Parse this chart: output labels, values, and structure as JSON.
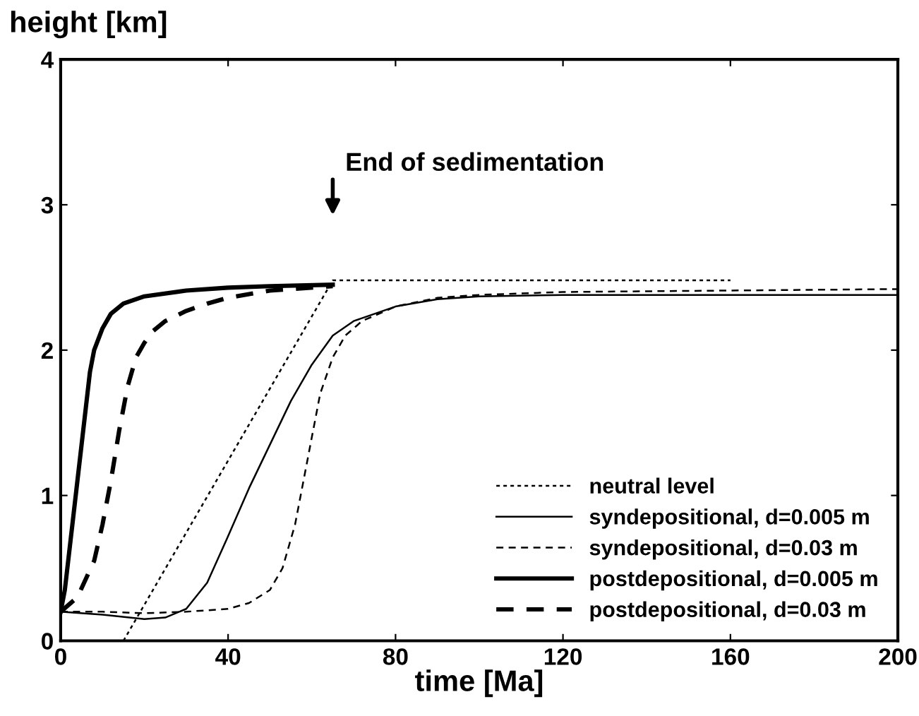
{
  "chart_data": {
    "type": "line",
    "xlabel": "time [Ma]",
    "ylabel": "height [km]",
    "xlim": [
      0,
      200
    ],
    "ylim": [
      0,
      4
    ],
    "xticks": [
      0,
      40,
      80,
      120,
      160,
      200
    ],
    "yticks": [
      0,
      1,
      2,
      3,
      4
    ],
    "grid": false,
    "legend": "bottom right",
    "annotations": [
      "End of sedimentation"
    ],
    "series": [
      {
        "name": "neutral level",
        "color": "#000000",
        "line_style": "dotted",
        "x": [
          15,
          65,
          160
        ],
        "values": [
          0,
          2.48,
          2.48
        ]
      },
      {
        "name": "syndepositional, d=0.005 m",
        "color": "#000000",
        "line_style": "solid",
        "x": [
          0,
          10,
          20,
          25,
          30,
          35,
          40,
          45,
          50,
          55,
          60,
          65,
          70,
          80,
          90,
          100,
          120,
          160,
          200
        ],
        "values": [
          0.2,
          0.18,
          0.15,
          0.16,
          0.22,
          0.4,
          0.72,
          1.05,
          1.35,
          1.65,
          1.9,
          2.1,
          2.2,
          2.3,
          2.35,
          2.37,
          2.38,
          2.38,
          2.38
        ]
      },
      {
        "name": "syndepositional, d=0.03 m",
        "color": "#000000",
        "line_style": "dashed",
        "x": [
          0,
          10,
          20,
          30,
          40,
          45,
          50,
          53,
          56,
          58,
          60,
          62,
          65,
          68,
          72,
          80,
          90,
          100,
          120,
          160,
          200
        ],
        "values": [
          0.2,
          0.2,
          0.19,
          0.2,
          0.22,
          0.26,
          0.35,
          0.5,
          0.8,
          1.1,
          1.4,
          1.7,
          1.95,
          2.1,
          2.2,
          2.3,
          2.36,
          2.38,
          2.4,
          2.41,
          2.42
        ]
      },
      {
        "name": "postdepositional, d=0.005 m",
        "color": "#000000",
        "line_style": "solid",
        "x": [
          0,
          1,
          2,
          3,
          4,
          5,
          6,
          7,
          8,
          10,
          12,
          15,
          20,
          30,
          40,
          50,
          65
        ],
        "values": [
          0.2,
          0.35,
          0.6,
          0.85,
          1.1,
          1.35,
          1.6,
          1.85,
          2.0,
          2.15,
          2.25,
          2.32,
          2.37,
          2.41,
          2.43,
          2.44,
          2.45
        ]
      },
      {
        "name": "postdepositional, d=0.03 m",
        "color": "#000000",
        "line_style": "dashed",
        "x": [
          0,
          4,
          8,
          10,
          12,
          14,
          16,
          18,
          20,
          22,
          25,
          30,
          35,
          40,
          50,
          65
        ],
        "values": [
          0.2,
          0.3,
          0.55,
          0.8,
          1.1,
          1.45,
          1.75,
          1.95,
          2.05,
          2.13,
          2.2,
          2.27,
          2.32,
          2.36,
          2.41,
          2.44
        ]
      }
    ]
  }
}
